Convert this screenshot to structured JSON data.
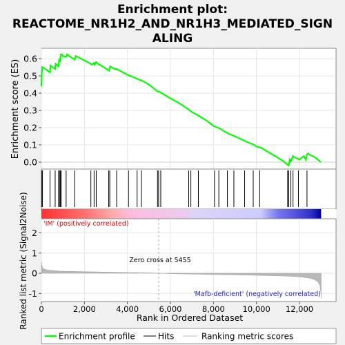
{
  "chart_data": {
    "type": "line",
    "title_lines": [
      "Enrichment plot:",
      "REACTOME_NR1H2_AND_NR1H3_MEDIATED_SIGN",
      "ALING"
    ],
    "top_panel": {
      "ylabel": "Enrichment score (ES)",
      "ylim": [
        -0.04,
        0.66
      ],
      "yticks": [
        0.0,
        0.1,
        0.2,
        0.3,
        0.4,
        0.5,
        0.6
      ],
      "ytick_labels": [
        "0.0",
        "0.1",
        "0.2",
        "0.3",
        "0.4",
        "0.5",
        "0.6"
      ],
      "series": [
        {
          "name": "Enrichment profile",
          "color": "#00ff00",
          "x": [
            0,
            30,
            60,
            130,
            400,
            420,
            640,
            660,
            800,
            830,
            870,
            900,
            960,
            1000,
            1150,
            1200,
            1300,
            1550,
            1600,
            2000,
            2300,
            2340,
            2440,
            2480,
            2540,
            2580,
            3100,
            3150,
            3200,
            3400,
            3500,
            4100,
            4150,
            4600,
            4650,
            5000,
            5400,
            5450,
            5600,
            6000,
            6500,
            6900,
            7000,
            7300,
            7700,
            8000,
            8200,
            8300,
            8700,
            9000,
            9500,
            9900,
            10000,
            10200,
            10400,
            10800,
            11200,
            11500,
            11550,
            11600,
            11700,
            11750,
            12000,
            12200,
            12300,
            12350,
            12400,
            12600,
            12700,
            13000
          ],
          "y": [
            0.44,
            0.55,
            0.55,
            0.545,
            0.52,
            0.56,
            0.54,
            0.57,
            0.555,
            0.6,
            0.58,
            0.625,
            0.625,
            0.615,
            0.61,
            0.625,
            0.615,
            0.595,
            0.615,
            0.59,
            0.57,
            0.565,
            0.575,
            0.565,
            0.58,
            0.575,
            0.535,
            0.53,
            0.555,
            0.54,
            0.54,
            0.5,
            0.5,
            0.475,
            0.475,
            0.45,
            0.41,
            0.41,
            0.4,
            0.37,
            0.335,
            0.3,
            0.29,
            0.27,
            0.24,
            0.21,
            0.2,
            0.195,
            0.165,
            0.15,
            0.12,
            0.1,
            0.09,
            0.085,
            0.07,
            0.04,
            0.01,
            -0.02,
            0.015,
            0.005,
            0.035,
            0.03,
            0.015,
            0.035,
            0.015,
            0.045,
            0.05,
            0.035,
            0.03,
            0.0
          ]
        }
      ]
    },
    "hits": [
      10,
      50,
      400,
      640,
      800,
      840,
      880,
      920,
      1150,
      1550,
      2300,
      2450,
      2550,
      3130,
      3180,
      3500,
      4050,
      4450,
      4650,
      5400,
      5450,
      5550,
      6850,
      6950,
      7300,
      8050,
      8250,
      8650,
      8950,
      9450,
      9850,
      10150,
      11450,
      11500,
      11600,
      11700,
      11950,
      12350
    ],
    "middle_labels": {
      "positive": "'IM' (positively correlated)",
      "negative": "'Mafb-deficient' (negatively correlated)",
      "zero_cross": "Zero cross at 5455"
    },
    "bottom_panel": {
      "ylabel": "Ranked list metric (Signal2Noise)",
      "ylim": [
        -1.4,
        2.7
      ],
      "yticks": [
        -1,
        0,
        1,
        2
      ],
      "ytick_labels": [
        "-1",
        "0",
        "1",
        "2"
      ],
      "zero_cross": 5455,
      "metric_profile": {
        "x": [
          0,
          20,
          50,
          100,
          200,
          400,
          700,
          1000,
          1500,
          2000,
          3000,
          4000,
          5000,
          5455,
          6000,
          7000,
          8000,
          9000,
          10000,
          11000,
          11800,
          12200,
          12500,
          12700,
          12850,
          12950,
          13000,
          13010
        ],
        "y": [
          0.55,
          0.4,
          0.3,
          0.23,
          0.18,
          0.15,
          0.12,
          0.1,
          0.09,
          0.08,
          0.06,
          0.04,
          0.02,
          0.0,
          -0.02,
          -0.04,
          -0.06,
          -0.08,
          -0.1,
          -0.13,
          -0.16,
          -0.2,
          -0.25,
          -0.32,
          -0.42,
          -0.6,
          -1.0,
          -1.25
        ]
      }
    },
    "xaxis": {
      "label": "Rank in Ordered Dataset",
      "xlim": [
        0,
        13700
      ],
      "ticks": [
        0,
        2000,
        4000,
        6000,
        8000,
        10000,
        12000
      ],
      "tick_labels": [
        "0",
        "2,000",
        "4,000",
        "6,000",
        "8,000",
        "10,000",
        "12,000"
      ]
    },
    "gradient_bar": {
      "stops": [
        {
          "x": 0,
          "color": "#ff3030"
        },
        {
          "x": 2000,
          "color": "#ff7070"
        },
        {
          "x": 3300,
          "color": "#ffaaaa"
        },
        {
          "x": 4100,
          "color": "#ffbbdd"
        },
        {
          "x": 6800,
          "color": "#e8ccf0"
        },
        {
          "x": 7000,
          "color": "#ddd4f8"
        },
        {
          "x": 10200,
          "color": "#ccccff"
        },
        {
          "x": 11000,
          "color": "#7777ee"
        },
        {
          "x": 12500,
          "color": "#3333cc"
        },
        {
          "x": 13000,
          "color": "#0000a0"
        }
      ]
    },
    "legend": {
      "position": "bottom",
      "items": [
        {
          "label": "Enrichment profile",
          "color": "#00ff00",
          "style": "thick-line"
        },
        {
          "label": "Hits",
          "color": "#000000",
          "style": "thin-line"
        },
        {
          "label": "Ranking metric scores",
          "color": "#bbbbbb",
          "style": "thin-line"
        }
      ]
    },
    "grid": true
  }
}
